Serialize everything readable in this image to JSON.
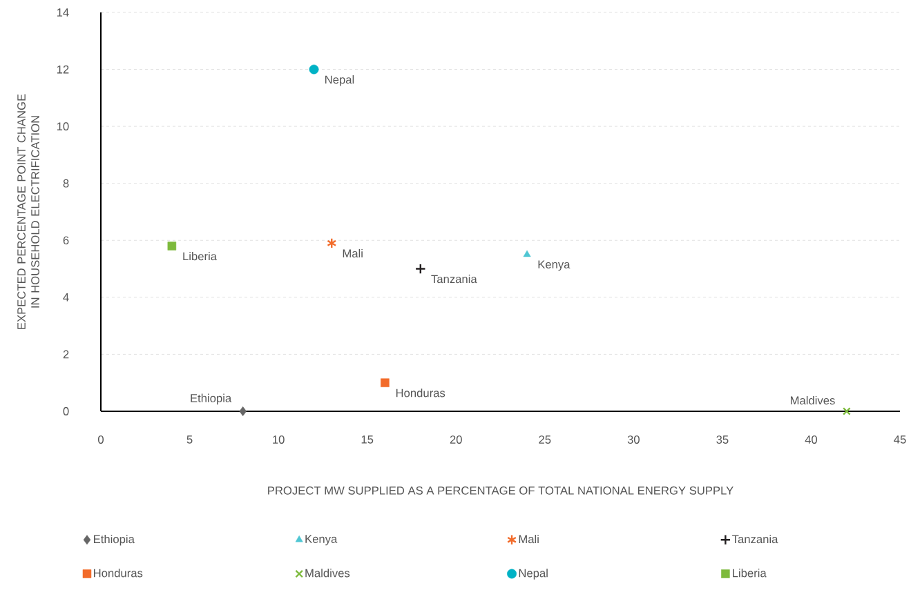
{
  "chart_data": {
    "type": "scatter",
    "xlabel": "PROJECT MW SUPPLIED AS A PERCENTAGE OF TOTAL NATIONAL ENERGY SUPPLY",
    "ylabel": "EXPECTED PERCENTAGE POINT CHANGE IN HOUSEHOLD ELECTRIFICATION",
    "xlim": [
      0,
      45
    ],
    "xticks": [
      0,
      5,
      10,
      15,
      20,
      25,
      30,
      35,
      40,
      45
    ],
    "ylim": [
      0,
      14
    ],
    "yticks": [
      0,
      2,
      4,
      6,
      8,
      10,
      12,
      14
    ],
    "grid": "y",
    "legend": "bottom",
    "series": [
      {
        "name": "Ethiopia",
        "color": "#666666",
        "marker": "diamond",
        "x": [
          8
        ],
        "values": [
          0
        ]
      },
      {
        "name": "Kenya",
        "color": "#4fc6d3",
        "marker": "triangle",
        "x": [
          24
        ],
        "values": [
          5.5
        ]
      },
      {
        "name": "Mali",
        "color": "#f26b2a",
        "x": [
          13
        ],
        "values": [
          5.9
        ]
      },
      {
        "name": "Tanzania",
        "color": "#231f20",
        "marker": "plus",
        "x": [
          18
        ],
        "values": [
          5
        ]
      },
      {
        "name": "Honduras",
        "color": "#f26b2a",
        "marker": "square",
        "x": [
          16
        ],
        "values": [
          1
        ]
      },
      {
        "name": "Maldives",
        "color": "#7dba3c",
        "marker": "cross",
        "x": [
          42
        ],
        "values": [
          0
        ]
      },
      {
        "name": "Nepal",
        "color": "#00b2c5",
        "marker": "circle",
        "x": [
          12
        ],
        "values": [
          12
        ]
      },
      {
        "name": "Liberia",
        "color": "#7dba3c",
        "marker": "square",
        "x": [
          4
        ],
        "values": [
          5.8
        ]
      }
    ],
    "annotations": [
      {
        "text": "Nepal",
        "x": 12,
        "y": 12
      },
      {
        "text": "Liberia",
        "x": 4,
        "y": 5.8
      },
      {
        "text": "Mali",
        "x": 13,
        "y": 5.9
      },
      {
        "text": "Tanzania",
        "x": 18,
        "y": 5
      },
      {
        "text": "Kenya",
        "x": 24,
        "y": 5.5
      },
      {
        "text": "Honduras",
        "x": 16,
        "y": 1
      },
      {
        "text": "Ethiopia",
        "x": 8,
        "y": 0
      },
      {
        "text": "Maldives",
        "x": 42,
        "y": 0
      }
    ]
  }
}
